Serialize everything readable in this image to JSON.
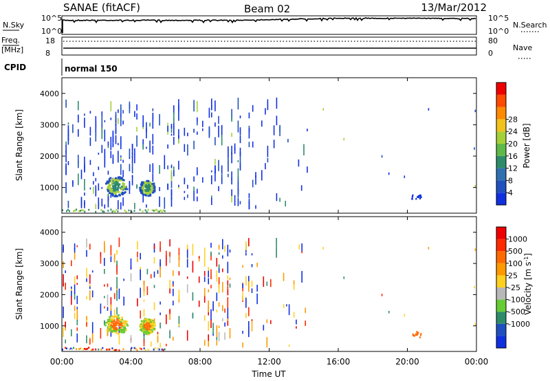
{
  "header": {
    "station": "SANAE (fitACF)",
    "beam": "Beam 02",
    "date": "13/Mar/2012"
  },
  "top_panels": {
    "nsky_label": "N.Sky",
    "nsearch_label": "N.Search",
    "noise_ticks": [
      "10^5",
      "10^0"
    ],
    "freq_label_top": "Freq.",
    "freq_label_bottom": "[MHz]",
    "freq_ticks": [
      "18",
      "8"
    ],
    "nave_label": "Nave",
    "nave_ticks": [
      "80",
      "0"
    ],
    "cpid_label": "CPID",
    "cpid_value": "normal 150"
  },
  "chart_data": [
    {
      "type": "heatmap",
      "name": "power",
      "ylabel": "Slant Range [km]",
      "xlabel": "",
      "ylim": [
        180,
        4500
      ],
      "xlim_hours": [
        0,
        24
      ],
      "y_ticks": [
        "1000",
        "2000",
        "3000",
        "4000"
      ],
      "x_ticks": [
        "00:00",
        "04:00",
        "08:00",
        "12:00",
        "16:00",
        "20:00",
        "00:00"
      ],
      "colorbar": {
        "label": "Power [dB]",
        "tick_labels": [
          "4",
          "8",
          "12",
          "16",
          "20",
          "24",
          "28"
        ],
        "colors": [
          "#1030e0",
          "#2050c0",
          "#3070b0",
          "#2e8b6a",
          "#60b848",
          "#a6d038",
          "#f2c21c",
          "#ff8a00",
          "#ff4a00",
          "#ee0000"
        ]
      }
    },
    {
      "type": "heatmap",
      "name": "velocity",
      "ylabel": "Slant Range [km]",
      "xlabel": "Time UT",
      "ylim": [
        180,
        4500
      ],
      "xlim_hours": [
        0,
        24
      ],
      "y_ticks": [
        "1000",
        "2000",
        "3000",
        "4000"
      ],
      "x_ticks": [
        "00:00",
        "04:00",
        "08:00",
        "12:00",
        "16:00",
        "20:00",
        "00:00"
      ],
      "colorbar": {
        "label": "Velocity [m s",
        "label_sup": "-1",
        "label_end": "]",
        "tick_labels": [
          "1000",
          "500",
          "100",
          "25",
          "-25",
          "-100",
          "-500",
          "-1000"
        ],
        "colors": [
          "#1030e0",
          "#2050c0",
          "#2e8b6a",
          "#66cc33",
          "#b8b8b8",
          "#ffd020",
          "#ff9a00",
          "#ff6a00",
          "#ff2a00",
          "#ee0000"
        ]
      }
    }
  ]
}
